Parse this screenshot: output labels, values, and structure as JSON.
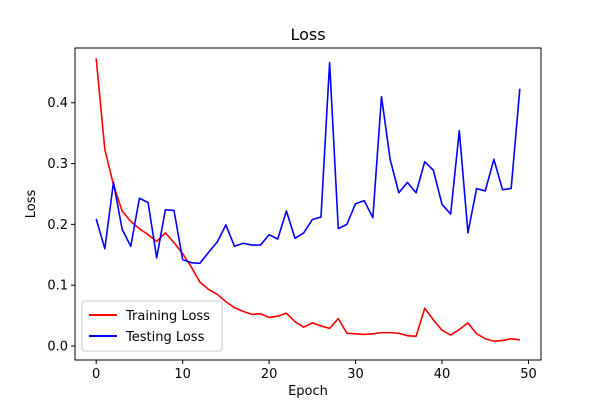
{
  "chart_data": {
    "type": "line",
    "title": "Loss",
    "xlabel": "Epoch",
    "ylabel": "Loss",
    "xlim": [
      -2.45,
      51.45
    ],
    "ylim": [
      -0.023,
      0.49
    ],
    "xticks": [
      0,
      10,
      20,
      30,
      40,
      50
    ],
    "yticks": [
      0.0,
      0.1,
      0.2,
      0.3,
      0.4
    ],
    "xtick_labels": [
      "0",
      "10",
      "20",
      "30",
      "40",
      "50"
    ],
    "ytick_labels": [
      "0.0",
      "0.1",
      "0.2",
      "0.3",
      "0.4"
    ],
    "grid": false,
    "legend_position": "lower-left",
    "x": [
      0,
      1,
      2,
      3,
      4,
      5,
      6,
      7,
      8,
      9,
      10,
      11,
      12,
      13,
      14,
      15,
      16,
      17,
      18,
      19,
      20,
      21,
      22,
      23,
      24,
      25,
      26,
      27,
      28,
      29,
      30,
      31,
      32,
      33,
      34,
      35,
      36,
      37,
      38,
      39,
      40,
      41,
      42,
      43,
      44,
      45,
      46,
      47,
      48,
      49
    ],
    "series": [
      {
        "name": "Training Loss",
        "color": "#ff0000",
        "values": [
          0.473,
          0.323,
          0.265,
          0.222,
          0.205,
          0.193,
          0.183,
          0.172,
          0.186,
          0.17,
          0.152,
          0.13,
          0.105,
          0.093,
          0.085,
          0.073,
          0.063,
          0.057,
          0.052,
          0.053,
          0.047,
          0.049,
          0.054,
          0.04,
          0.031,
          0.038,
          0.033,
          0.029,
          0.045,
          0.021,
          0.02,
          0.019,
          0.02,
          0.022,
          0.022,
          0.021,
          0.017,
          0.016,
          0.062,
          0.043,
          0.026,
          0.018,
          0.027,
          0.038,
          0.02,
          0.012,
          0.008,
          0.009,
          0.012,
          0.01
        ]
      },
      {
        "name": "Testing Loss",
        "color": "#0000ff",
        "values": [
          0.209,
          0.16,
          0.269,
          0.192,
          0.164,
          0.243,
          0.236,
          0.145,
          0.224,
          0.223,
          0.142,
          0.137,
          0.136,
          0.154,
          0.171,
          0.199,
          0.164,
          0.169,
          0.166,
          0.166,
          0.183,
          0.176,
          0.222,
          0.177,
          0.186,
          0.208,
          0.212,
          0.466,
          0.193,
          0.2,
          0.234,
          0.239,
          0.211,
          0.41,
          0.307,
          0.252,
          0.269,
          0.252,
          0.303,
          0.289,
          0.233,
          0.217,
          0.354,
          0.186,
          0.259,
          0.255,
          0.307,
          0.257,
          0.259,
          0.423
        ]
      }
    ]
  }
}
